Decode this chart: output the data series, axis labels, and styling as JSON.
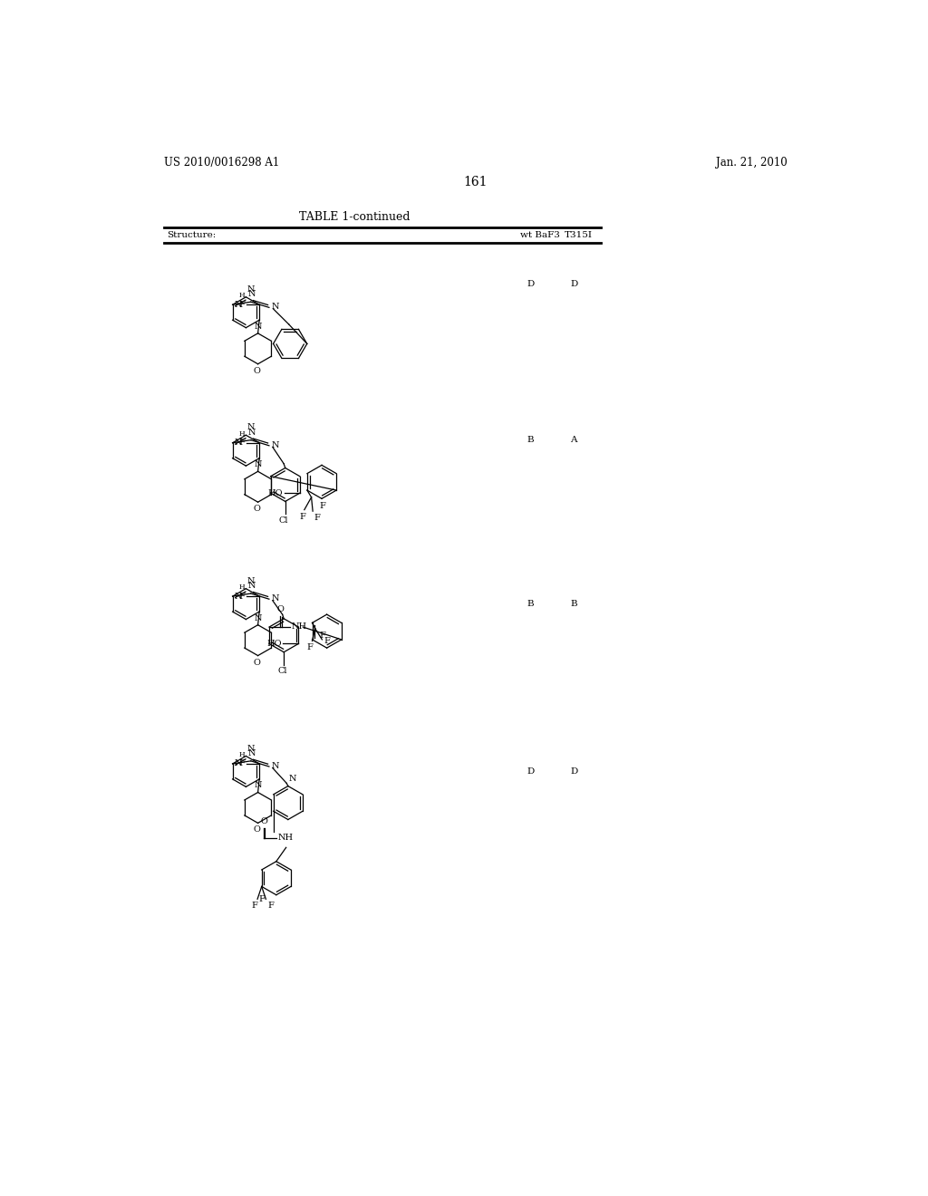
{
  "bg_color": "#ffffff",
  "header_left": "US 2010/0016298 A1",
  "header_right": "Jan. 21, 2010",
  "page_number": "161",
  "table_title": "TABLE 1-continued",
  "col_structure": "Structure:",
  "col_wt": "wt BaF3",
  "col_t315i": "T315I",
  "row_data": [
    {
      "wt": "D",
      "t315i": "D"
    },
    {
      "wt": "B",
      "t315i": "A"
    },
    {
      "wt": "B",
      "t315i": "B"
    },
    {
      "wt": "D",
      "t315i": "D"
    }
  ]
}
